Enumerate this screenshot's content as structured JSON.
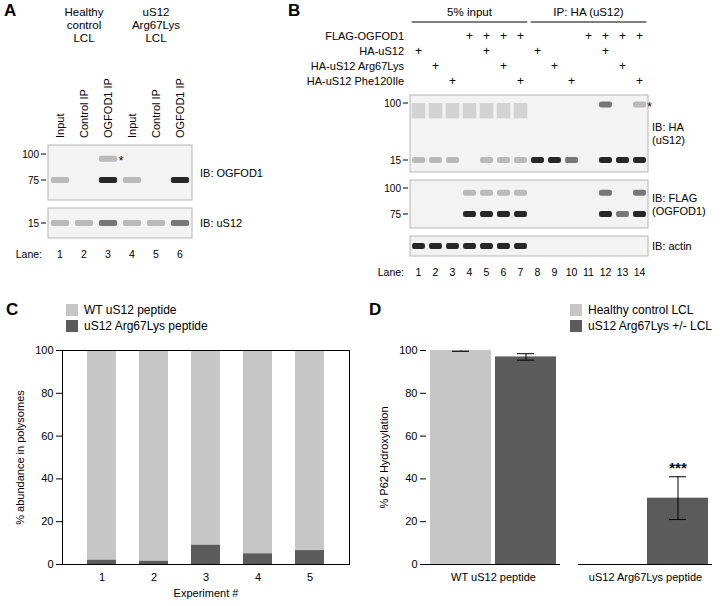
{
  "panel_a": {
    "letter": "A",
    "groups": [
      {
        "lines": [
          "Healthy",
          "control",
          "LCL"
        ],
        "lanes": [
          1,
          3
        ]
      },
      {
        "lines": [
          "uS12",
          "Arg67Lys",
          "LCL"
        ],
        "lanes": [
          4,
          6
        ]
      }
    ],
    "lane_labels": [
      "Input",
      "Control IP",
      "OGFOD1 IP",
      "Input",
      "Control IP",
      "OGFOD1 IP"
    ],
    "lane_title": "Lane:",
    "lanes": [
      1,
      2,
      3,
      4,
      5,
      6
    ],
    "blots": [
      {
        "label": [
          "IB: OGFOD1"
        ],
        "markers": [
          100,
          75
        ],
        "bands": [
          {
            "kda": 75,
            "levels": [
              1,
              0,
              3,
              1,
              0,
              3
            ]
          },
          {
            "kda": 95,
            "levels": [
              0,
              0,
              1,
              0,
              0,
              0
            ]
          }
        ],
        "asterisk": {
          "text": "*",
          "lane": 3,
          "kda": 95
        }
      },
      {
        "label": [
          "IB: uS12"
        ],
        "markers": [
          15
        ],
        "bands": [
          {
            "kda": 15,
            "levels": [
              1,
              1,
              2,
              1,
              1,
              2
            ]
          }
        ]
      }
    ]
  },
  "panel_b": {
    "letter": "B",
    "headers": [
      {
        "text": "5% input",
        "lanes": [
          1,
          7
        ]
      },
      {
        "text": "IP: HA (uS12)",
        "lanes": [
          8,
          14
        ]
      }
    ],
    "conditions": [
      {
        "name": "FLAG-OGFOD1",
        "mark": "+",
        "lanes": [
          4,
          5,
          6,
          7,
          11,
          12,
          13,
          14
        ]
      },
      {
        "name": "HA-uS12",
        "mark": "+",
        "lanes": [
          1,
          5,
          8,
          12
        ]
      },
      {
        "name": "HA-uS12 Arg67Lys",
        "mark": "+",
        "lanes": [
          2,
          6,
          9,
          13
        ]
      },
      {
        "name": "HA-uS12 Phe120Ile",
        "mark": "+",
        "lanes": [
          3,
          7,
          10,
          14
        ]
      }
    ],
    "lane_title": "Lane:",
    "lanes": [
      1,
      2,
      3,
      4,
      5,
      6,
      7,
      8,
      9,
      10,
      11,
      12,
      13,
      14
    ],
    "blots": [
      {
        "label": [
          "IB: HA",
          "(uS12)"
        ],
        "markers": [
          100,
          15
        ],
        "smears": [
          {
            "from": 100,
            "to": 60,
            "levels": [
              1,
              1,
              1,
              1,
              1,
              1,
              1,
              0,
              0,
              0,
              0,
              0,
              0,
              0
            ]
          }
        ],
        "bands": [
          {
            "kda": 15,
            "levels": [
              1,
              1,
              1,
              0,
              1,
              1,
              1,
              3,
              3,
              2,
              0,
              3,
              3,
              3
            ]
          },
          {
            "kda": 95,
            "levels": [
              0,
              0,
              0,
              0,
              0,
              0,
              0,
              0,
              0,
              0,
              0,
              2,
              0,
              1
            ]
          }
        ],
        "asterisk": {
          "text": "*",
          "lane": 14,
          "kda": 95
        }
      },
      {
        "label": [
          "IB: FLAG",
          "(OGFOD1)"
        ],
        "markers": [
          100,
          75
        ],
        "bands": [
          {
            "kda": 75,
            "levels": [
              0,
              0,
              0,
              3,
              3,
              3,
              3,
              0,
              0,
              0,
              0,
              3,
              2,
              3
            ]
          },
          {
            "kda": 95,
            "levels": [
              0,
              0,
              0,
              1,
              1,
              1,
              1,
              0,
              0,
              0,
              0,
              2,
              0,
              2
            ]
          }
        ]
      },
      {
        "label": [
          "IB: actin"
        ],
        "markers": [],
        "bands": [
          {
            "levels": [
              3,
              3,
              3,
              3,
              3,
              3,
              3,
              0,
              0,
              0,
              0,
              0,
              0,
              0
            ]
          }
        ]
      }
    ]
  },
  "chart_data": [
    {
      "title": "C",
      "type": "bar",
      "stacked": true,
      "categories": [
        1,
        2,
        3,
        4,
        5
      ],
      "x_label": "Experiment #",
      "y_label": "% abundance in polysomes",
      "series": [
        {
          "name": "WT uS12 peptide",
          "color": "#c6c6c6",
          "values": [
            98,
            98.5,
            91,
            95,
            93.5
          ]
        },
        {
          "name": "uS12 Arg67Lys peptide",
          "color": "#5b5b5b",
          "values": [
            2,
            1.5,
            9,
            5,
            6.5
          ]
        }
      ],
      "ylim": [
        0,
        100
      ],
      "yticks": [
        0,
        20,
        40,
        60,
        80,
        100
      ],
      "legend": "top-left"
    },
    {
      "title": "D",
      "type": "bar",
      "categories": [
        "WT uS12 peptide",
        "uS12 Arg67Lys peptide"
      ],
      "y_label": "% P62 Hydroxylation",
      "series": [
        {
          "name": "Healthy control LCL",
          "color": "#c6c6c6",
          "values": [
            100,
            0
          ],
          "errors": [
            0.4,
            null
          ]
        },
        {
          "name": "uS12 Arg67Lys +/- LCL",
          "color": "#5b5b5b",
          "values": [
            97,
            31
          ],
          "errors": [
            1.5,
            10
          ]
        }
      ],
      "annotations": [
        {
          "text": "***",
          "category": "uS12 Arg67Lys peptide",
          "series": "uS12 Arg67Lys +/- LCL"
        }
      ],
      "ylim": [
        0,
        100
      ],
      "yticks": [
        0,
        20,
        40,
        60,
        80,
        100
      ],
      "legend": "top-right"
    }
  ]
}
